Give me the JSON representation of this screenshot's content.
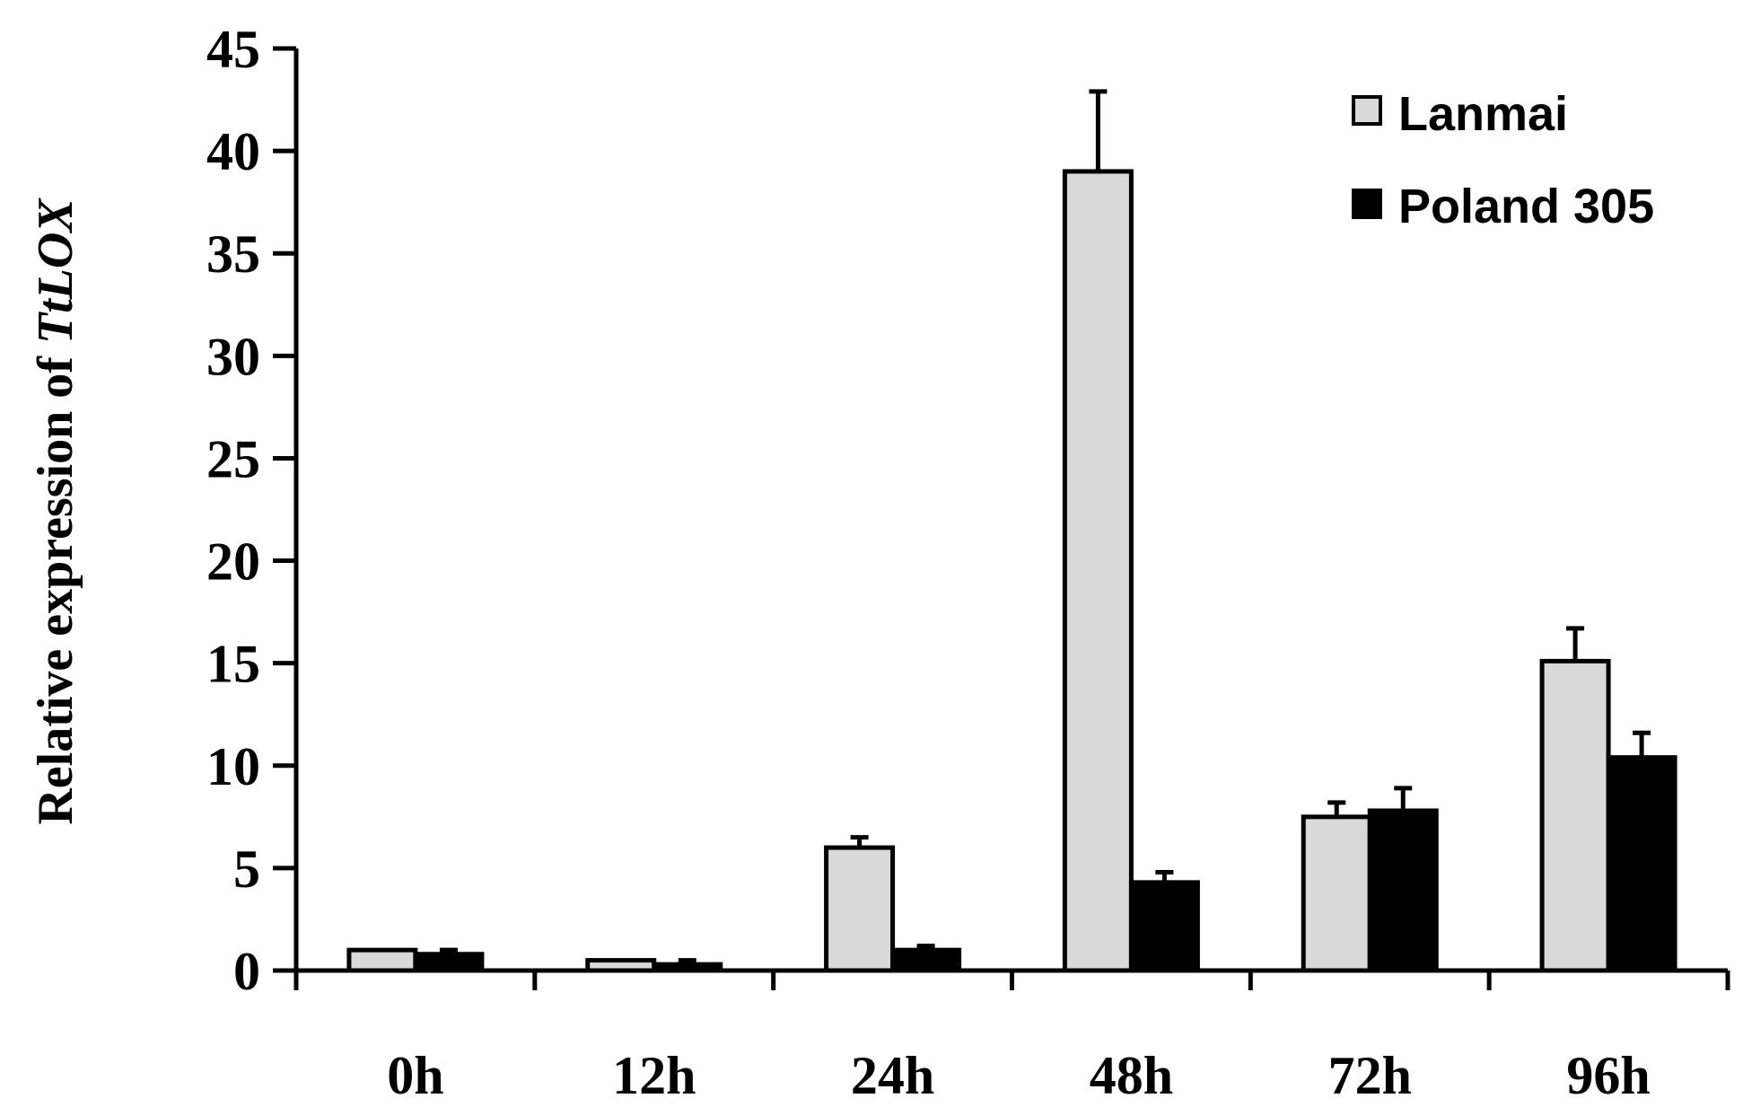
{
  "chart_data": {
    "type": "bar",
    "categories": [
      "0h",
      "12h",
      "24h",
      "48h",
      "72h",
      "96h"
    ],
    "series": [
      {
        "name": "Lanmai",
        "color": "#d9d9d9",
        "values": [
          1.0,
          0.5,
          6.0,
          39.0,
          7.5,
          15.1
        ],
        "errors": [
          0.0,
          0.0,
          0.5,
          3.9,
          0.7,
          1.6
        ]
      },
      {
        "name": "Poland 305",
        "color": "#000000",
        "values": [
          0.8,
          0.3,
          1.0,
          4.3,
          7.8,
          10.4
        ],
        "errors": [
          0.2,
          0.2,
          0.2,
          0.5,
          1.1,
          1.2
        ]
      }
    ],
    "ylabel": "Relative expression of ",
    "ylabel_gene": "TtLOX",
    "ylim": [
      0,
      45
    ],
    "yticks": [
      "0",
      "5",
      "10",
      "15",
      "20",
      "25",
      "30",
      "35",
      "40",
      "45"
    ],
    "legend_position": "top-right",
    "grid": false
  }
}
